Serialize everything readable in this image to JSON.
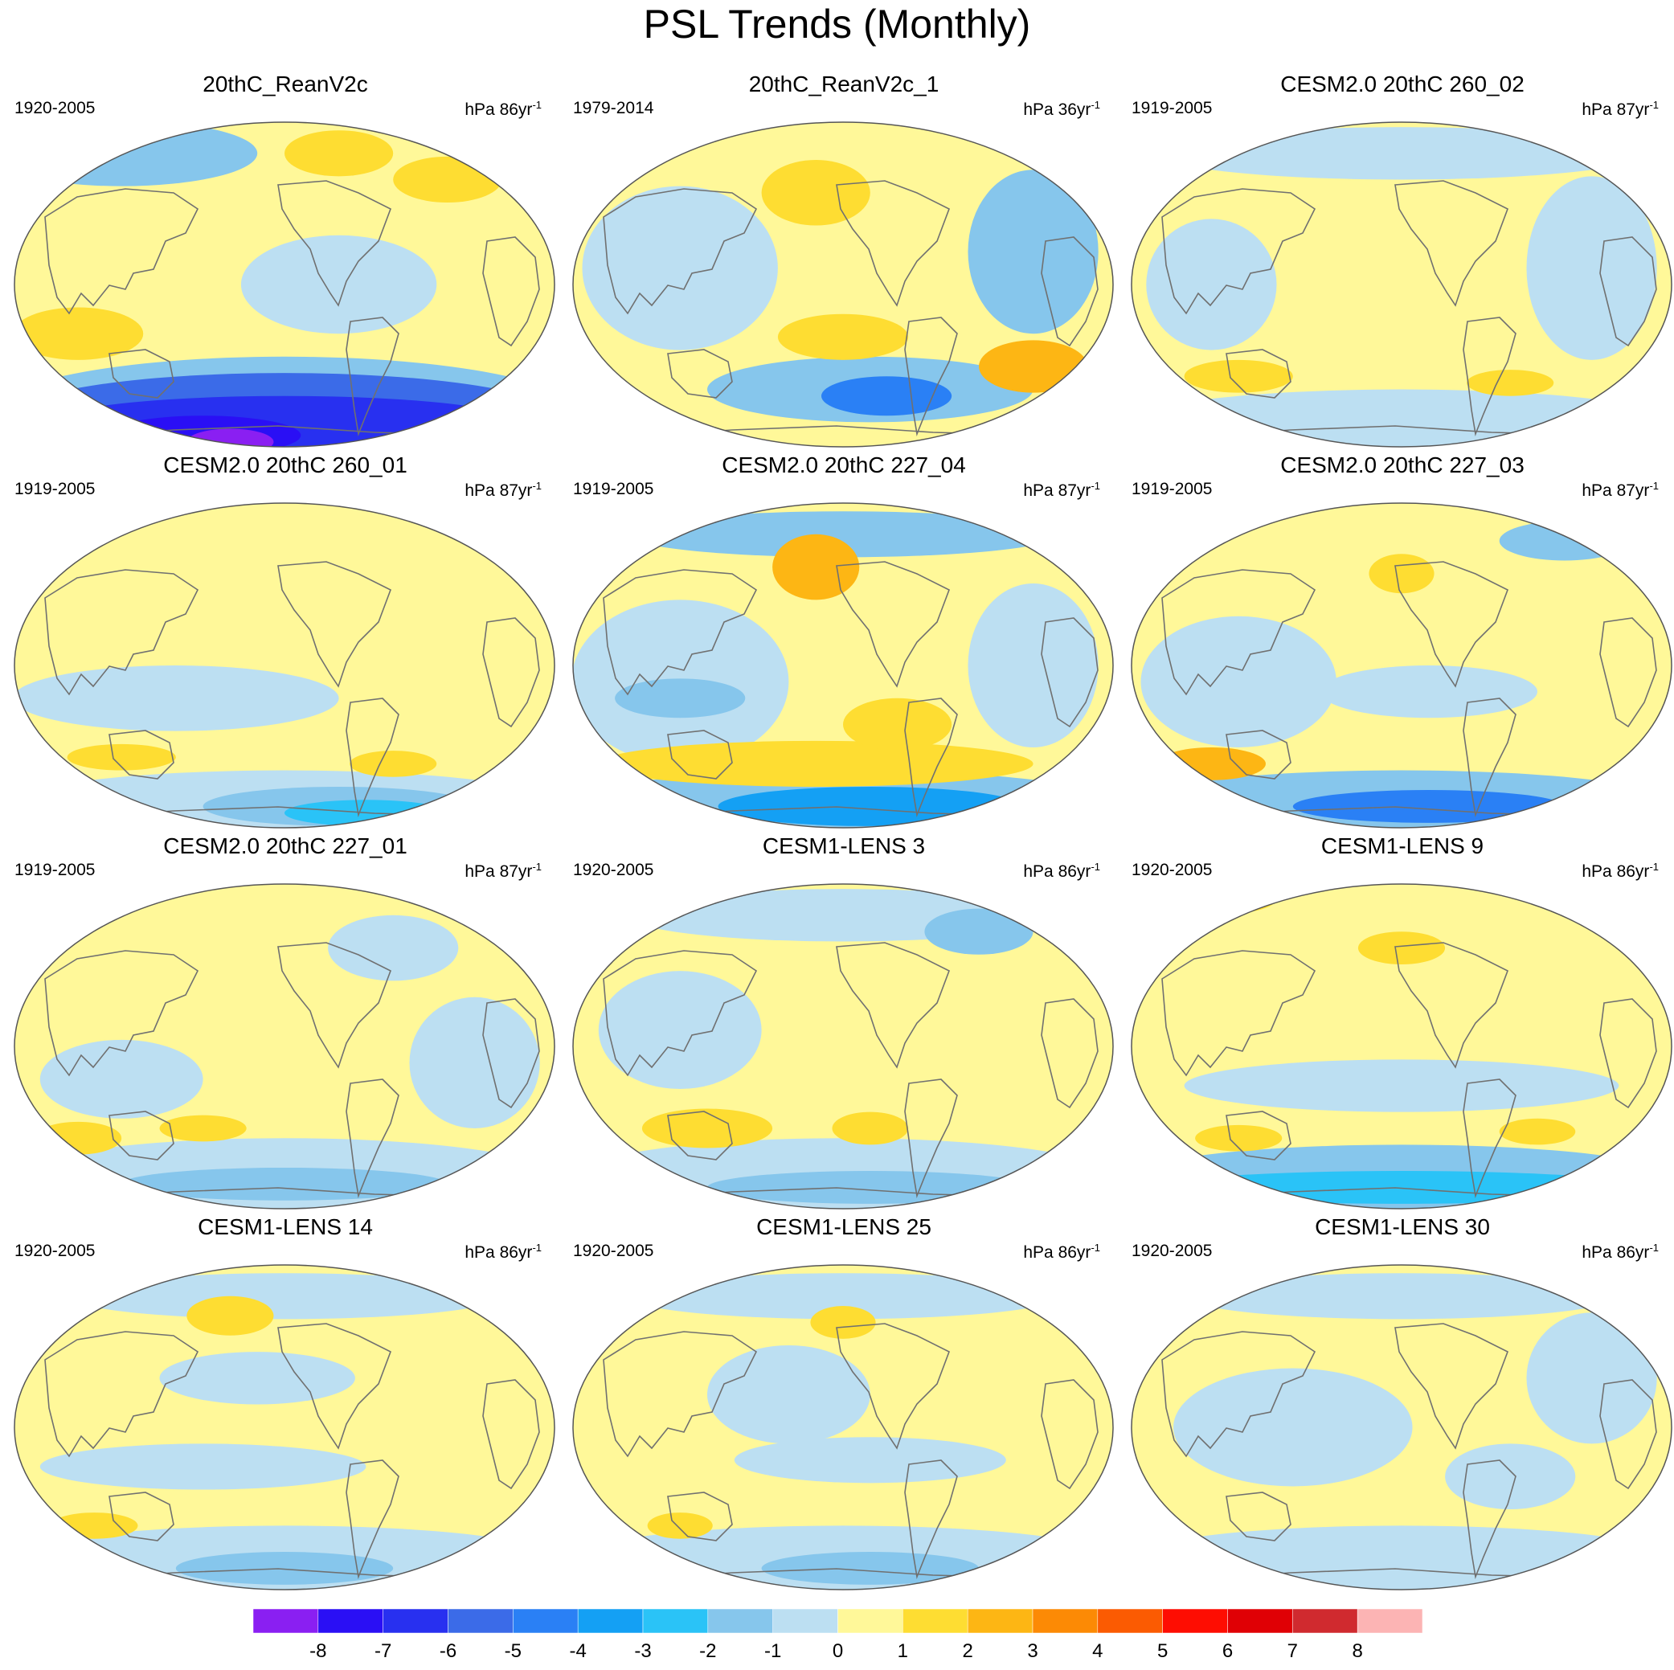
{
  "title": "PSL Trends (Monthly)",
  "chart_data": {
    "type": "heatmap",
    "title": "PSL Trends (Monthly)",
    "projection": "Robinson / Hammer-style global ellipse, Pacific-centered",
    "colorbar": {
      "colors": [
        "#8a1ff2",
        "#2a0ff5",
        "#2830f0",
        "#3b6be8",
        "#2a80f5",
        "#14a0f4",
        "#2ac3f7",
        "#86c6ec",
        "#bcdff2",
        "#fff899",
        "#fedd32",
        "#fdb614",
        "#fc8a05",
        "#fb5b02",
        "#fe0d02",
        "#e00005",
        "#d02a2f",
        "#fcb4b4"
      ],
      "labels": [
        "-8",
        "-7",
        "-6",
        "-5",
        "-4",
        "-3",
        "-2",
        "-1",
        "0",
        "1",
        "2",
        "3",
        "4",
        "5",
        "6",
        "7",
        "8"
      ]
    },
    "units_base": "hPa",
    "panels": [
      {
        "name": "20thC_ReanV2c",
        "period": "1920-2005",
        "units_prefix": "hPa 86yr",
        "units_exp": "-1",
        "base": "#fff899",
        "blobs": [
          {
            "x": 0.5,
            "y": 0.9,
            "rx": 0.55,
            "ry": 0.18,
            "c": "#86c6ec"
          },
          {
            "x": 0.5,
            "y": 0.9,
            "rx": 0.5,
            "ry": 0.13,
            "c": "#3b6be8"
          },
          {
            "x": 0.5,
            "y": 0.93,
            "rx": 0.45,
            "ry": 0.09,
            "c": "#2830f0"
          },
          {
            "x": 0.35,
            "y": 0.96,
            "rx": 0.18,
            "ry": 0.06,
            "c": "#2a0ff5"
          },
          {
            "x": 0.4,
            "y": 0.98,
            "rx": 0.08,
            "ry": 0.04,
            "c": "#8a1ff2"
          },
          {
            "x": 0.2,
            "y": 0.1,
            "rx": 0.25,
            "ry": 0.1,
            "c": "#86c6ec"
          },
          {
            "x": 0.6,
            "y": 0.5,
            "rx": 0.18,
            "ry": 0.15,
            "c": "#bcdff2"
          },
          {
            "x": 0.12,
            "y": 0.65,
            "rx": 0.12,
            "ry": 0.08,
            "c": "#fedd32"
          },
          {
            "x": 0.6,
            "y": 0.1,
            "rx": 0.1,
            "ry": 0.07,
            "c": "#fedd32"
          },
          {
            "x": 0.8,
            "y": 0.18,
            "rx": 0.1,
            "ry": 0.07,
            "c": "#fedd32"
          }
        ]
      },
      {
        "name": "20thC_ReanV2c_1",
        "period": "1979-2014",
        "units_prefix": "hPa 36yr",
        "units_exp": "-1",
        "base": "#fff899",
        "blobs": [
          {
            "x": 0.2,
            "y": 0.45,
            "rx": 0.18,
            "ry": 0.25,
            "c": "#bcdff2"
          },
          {
            "x": 0.55,
            "y": 0.82,
            "rx": 0.3,
            "ry": 0.1,
            "c": "#86c6ec"
          },
          {
            "x": 0.58,
            "y": 0.84,
            "rx": 0.12,
            "ry": 0.06,
            "c": "#2a80f5"
          },
          {
            "x": 0.45,
            "y": 0.22,
            "rx": 0.1,
            "ry": 0.1,
            "c": "#fedd32"
          },
          {
            "x": 0.5,
            "y": 0.66,
            "rx": 0.12,
            "ry": 0.07,
            "c": "#fedd32"
          },
          {
            "x": 0.85,
            "y": 0.75,
            "rx": 0.1,
            "ry": 0.08,
            "c": "#fdb614"
          },
          {
            "x": 0.85,
            "y": 0.4,
            "rx": 0.12,
            "ry": 0.25,
            "c": "#86c6ec"
          }
        ]
      },
      {
        "name": "CESM2.0 20thC 260_02",
        "period": "1919-2005",
        "units_prefix": "hPa 87yr",
        "units_exp": "-1",
        "base": "#fff899",
        "blobs": [
          {
            "x": 0.5,
            "y": 0.92,
            "rx": 0.5,
            "ry": 0.1,
            "c": "#bcdff2"
          },
          {
            "x": 0.5,
            "y": 0.1,
            "rx": 0.45,
            "ry": 0.08,
            "c": "#bcdff2"
          },
          {
            "x": 0.85,
            "y": 0.45,
            "rx": 0.12,
            "ry": 0.28,
            "c": "#bcdff2"
          },
          {
            "x": 0.15,
            "y": 0.5,
            "rx": 0.12,
            "ry": 0.2,
            "c": "#bcdff2"
          },
          {
            "x": 0.2,
            "y": 0.78,
            "rx": 0.1,
            "ry": 0.05,
            "c": "#fedd32"
          },
          {
            "x": 0.7,
            "y": 0.8,
            "rx": 0.08,
            "ry": 0.04,
            "c": "#fedd32"
          }
        ]
      },
      {
        "name": "CESM2.0 20thC 260_01",
        "period": "1919-2005",
        "units_prefix": "hPa 87yr",
        "units_exp": "-1",
        "base": "#fff899",
        "blobs": [
          {
            "x": 0.5,
            "y": 0.92,
            "rx": 0.5,
            "ry": 0.1,
            "c": "#bcdff2"
          },
          {
            "x": 0.6,
            "y": 0.93,
            "rx": 0.25,
            "ry": 0.06,
            "c": "#86c6ec"
          },
          {
            "x": 0.65,
            "y": 0.95,
            "rx": 0.15,
            "ry": 0.04,
            "c": "#2ac3f7"
          },
          {
            "x": 0.3,
            "y": 0.6,
            "rx": 0.3,
            "ry": 0.1,
            "c": "#bcdff2"
          },
          {
            "x": 0.2,
            "y": 0.78,
            "rx": 0.1,
            "ry": 0.04,
            "c": "#fedd32"
          },
          {
            "x": 0.7,
            "y": 0.8,
            "rx": 0.08,
            "ry": 0.04,
            "c": "#fedd32"
          }
        ]
      },
      {
        "name": "CESM2.0 20thC 227_04",
        "period": "1919-2005",
        "units_prefix": "hPa 87yr",
        "units_exp": "-1",
        "base": "#fff899",
        "blobs": [
          {
            "x": 0.5,
            "y": 0.92,
            "rx": 0.5,
            "ry": 0.1,
            "c": "#86c6ec"
          },
          {
            "x": 0.55,
            "y": 0.93,
            "rx": 0.28,
            "ry": 0.06,
            "c": "#14a0f4"
          },
          {
            "x": 0.2,
            "y": 0.55,
            "rx": 0.2,
            "ry": 0.25,
            "c": "#bcdff2"
          },
          {
            "x": 0.2,
            "y": 0.6,
            "rx": 0.12,
            "ry": 0.06,
            "c": "#86c6ec"
          },
          {
            "x": 0.5,
            "y": 0.1,
            "rx": 0.4,
            "ry": 0.07,
            "c": "#86c6ec"
          },
          {
            "x": 0.45,
            "y": 0.2,
            "rx": 0.08,
            "ry": 0.1,
            "c": "#fdb614"
          },
          {
            "x": 0.45,
            "y": 0.8,
            "rx": 0.4,
            "ry": 0.07,
            "c": "#fedd32"
          },
          {
            "x": 0.6,
            "y": 0.68,
            "rx": 0.1,
            "ry": 0.08,
            "c": "#fedd32"
          },
          {
            "x": 0.85,
            "y": 0.5,
            "rx": 0.12,
            "ry": 0.25,
            "c": "#bcdff2"
          }
        ]
      },
      {
        "name": "CESM2.0 20thC 227_03",
        "period": "1919-2005",
        "units_prefix": "hPa 87yr",
        "units_exp": "-1",
        "base": "#fff899",
        "blobs": [
          {
            "x": 0.5,
            "y": 0.92,
            "rx": 0.5,
            "ry": 0.1,
            "c": "#86c6ec"
          },
          {
            "x": 0.55,
            "y": 0.93,
            "rx": 0.25,
            "ry": 0.05,
            "c": "#2a80f5"
          },
          {
            "x": 0.8,
            "y": 0.12,
            "rx": 0.12,
            "ry": 0.06,
            "c": "#86c6ec"
          },
          {
            "x": 0.2,
            "y": 0.55,
            "rx": 0.18,
            "ry": 0.2,
            "c": "#bcdff2"
          },
          {
            "x": 0.55,
            "y": 0.58,
            "rx": 0.2,
            "ry": 0.08,
            "c": "#bcdff2"
          },
          {
            "x": 0.15,
            "y": 0.8,
            "rx": 0.1,
            "ry": 0.05,
            "c": "#fdb614"
          },
          {
            "x": 0.5,
            "y": 0.22,
            "rx": 0.06,
            "ry": 0.06,
            "c": "#fedd32"
          }
        ]
      },
      {
        "name": "CESM2.0 20thC 227_01",
        "period": "1919-2005",
        "units_prefix": "hPa 87yr",
        "units_exp": "-1",
        "base": "#fff899",
        "blobs": [
          {
            "x": 0.5,
            "y": 0.9,
            "rx": 0.5,
            "ry": 0.12,
            "c": "#bcdff2"
          },
          {
            "x": 0.5,
            "y": 0.92,
            "rx": 0.3,
            "ry": 0.05,
            "c": "#86c6ec"
          },
          {
            "x": 0.7,
            "y": 0.2,
            "rx": 0.12,
            "ry": 0.1,
            "c": "#bcdff2"
          },
          {
            "x": 0.2,
            "y": 0.6,
            "rx": 0.15,
            "ry": 0.12,
            "c": "#bcdff2"
          },
          {
            "x": 0.85,
            "y": 0.55,
            "rx": 0.12,
            "ry": 0.2,
            "c": "#bcdff2"
          },
          {
            "x": 0.12,
            "y": 0.78,
            "rx": 0.08,
            "ry": 0.05,
            "c": "#fedd32"
          },
          {
            "x": 0.35,
            "y": 0.75,
            "rx": 0.08,
            "ry": 0.04,
            "c": "#fedd32"
          }
        ]
      },
      {
        "name": "CESM1-LENS 3",
        "period": "1920-2005",
        "units_prefix": "hPa 86yr",
        "units_exp": "-1",
        "base": "#fff899",
        "blobs": [
          {
            "x": 0.5,
            "y": 0.9,
            "rx": 0.5,
            "ry": 0.12,
            "c": "#bcdff2"
          },
          {
            "x": 0.55,
            "y": 0.93,
            "rx": 0.3,
            "ry": 0.05,
            "c": "#86c6ec"
          },
          {
            "x": 0.5,
            "y": 0.1,
            "rx": 0.4,
            "ry": 0.08,
            "c": "#bcdff2"
          },
          {
            "x": 0.75,
            "y": 0.15,
            "rx": 0.1,
            "ry": 0.07,
            "c": "#86c6ec"
          },
          {
            "x": 0.2,
            "y": 0.45,
            "rx": 0.15,
            "ry": 0.18,
            "c": "#bcdff2"
          },
          {
            "x": 0.25,
            "y": 0.75,
            "rx": 0.12,
            "ry": 0.06,
            "c": "#fedd32"
          },
          {
            "x": 0.55,
            "y": 0.75,
            "rx": 0.07,
            "ry": 0.05,
            "c": "#fedd32"
          }
        ]
      },
      {
        "name": "CESM1-LENS 9",
        "period": "1920-2005",
        "units_prefix": "hPa 86yr",
        "units_exp": "-1",
        "base": "#fff899",
        "blobs": [
          {
            "x": 0.5,
            "y": 0.9,
            "rx": 0.5,
            "ry": 0.1,
            "c": "#86c6ec"
          },
          {
            "x": 0.5,
            "y": 0.93,
            "rx": 0.45,
            "ry": 0.05,
            "c": "#2ac3f7"
          },
          {
            "x": 0.5,
            "y": 0.62,
            "rx": 0.4,
            "ry": 0.08,
            "c": "#bcdff2"
          },
          {
            "x": 0.15,
            "y": 0.05,
            "rx": 0.12,
            "ry": 0.05,
            "c": "#fedd32"
          },
          {
            "x": 0.5,
            "y": 0.2,
            "rx": 0.08,
            "ry": 0.05,
            "c": "#fedd32"
          },
          {
            "x": 0.2,
            "y": 0.78,
            "rx": 0.08,
            "ry": 0.04,
            "c": "#fedd32"
          },
          {
            "x": 0.75,
            "y": 0.76,
            "rx": 0.07,
            "ry": 0.04,
            "c": "#fedd32"
          }
        ]
      },
      {
        "name": "CESM1-LENS 14",
        "period": "1920-2005",
        "units_prefix": "hPa 86yr",
        "units_exp": "-1",
        "base": "#fff899",
        "blobs": [
          {
            "x": 0.5,
            "y": 0.9,
            "rx": 0.5,
            "ry": 0.1,
            "c": "#bcdff2"
          },
          {
            "x": 0.5,
            "y": 0.93,
            "rx": 0.2,
            "ry": 0.05,
            "c": "#86c6ec"
          },
          {
            "x": 0.5,
            "y": 0.1,
            "rx": 0.4,
            "ry": 0.07,
            "c": "#bcdff2"
          },
          {
            "x": 0.45,
            "y": 0.35,
            "rx": 0.18,
            "ry": 0.08,
            "c": "#bcdff2"
          },
          {
            "x": 0.35,
            "y": 0.62,
            "rx": 0.3,
            "ry": 0.07,
            "c": "#bcdff2"
          },
          {
            "x": 0.4,
            "y": 0.16,
            "rx": 0.08,
            "ry": 0.06,
            "c": "#fedd32"
          },
          {
            "x": 0.15,
            "y": 0.8,
            "rx": 0.08,
            "ry": 0.04,
            "c": "#fedd32"
          }
        ]
      },
      {
        "name": "CESM1-LENS 25",
        "period": "1920-2005",
        "units_prefix": "hPa 86yr",
        "units_exp": "-1",
        "base": "#fff899",
        "blobs": [
          {
            "x": 0.5,
            "y": 0.9,
            "rx": 0.5,
            "ry": 0.1,
            "c": "#bcdff2"
          },
          {
            "x": 0.55,
            "y": 0.93,
            "rx": 0.2,
            "ry": 0.05,
            "c": "#86c6ec"
          },
          {
            "x": 0.5,
            "y": 0.1,
            "rx": 0.4,
            "ry": 0.07,
            "c": "#bcdff2"
          },
          {
            "x": 0.4,
            "y": 0.4,
            "rx": 0.15,
            "ry": 0.15,
            "c": "#bcdff2"
          },
          {
            "x": 0.55,
            "y": 0.6,
            "rx": 0.25,
            "ry": 0.07,
            "c": "#bcdff2"
          },
          {
            "x": 0.5,
            "y": 0.18,
            "rx": 0.06,
            "ry": 0.05,
            "c": "#fedd32"
          },
          {
            "x": 0.2,
            "y": 0.8,
            "rx": 0.06,
            "ry": 0.04,
            "c": "#fedd32"
          }
        ]
      },
      {
        "name": "CESM1-LENS 30",
        "period": "1920-2005",
        "units_prefix": "hPa 86yr",
        "units_exp": "-1",
        "base": "#fff899",
        "blobs": [
          {
            "x": 0.5,
            "y": 0.9,
            "rx": 0.5,
            "ry": 0.1,
            "c": "#bcdff2"
          },
          {
            "x": 0.5,
            "y": 0.1,
            "rx": 0.4,
            "ry": 0.07,
            "c": "#bcdff2"
          },
          {
            "x": 0.3,
            "y": 0.5,
            "rx": 0.22,
            "ry": 0.18,
            "c": "#bcdff2"
          },
          {
            "x": 0.7,
            "y": 0.65,
            "rx": 0.12,
            "ry": 0.1,
            "c": "#bcdff2"
          },
          {
            "x": 0.85,
            "y": 0.35,
            "rx": 0.12,
            "ry": 0.2,
            "c": "#bcdff2"
          }
        ]
      }
    ]
  }
}
